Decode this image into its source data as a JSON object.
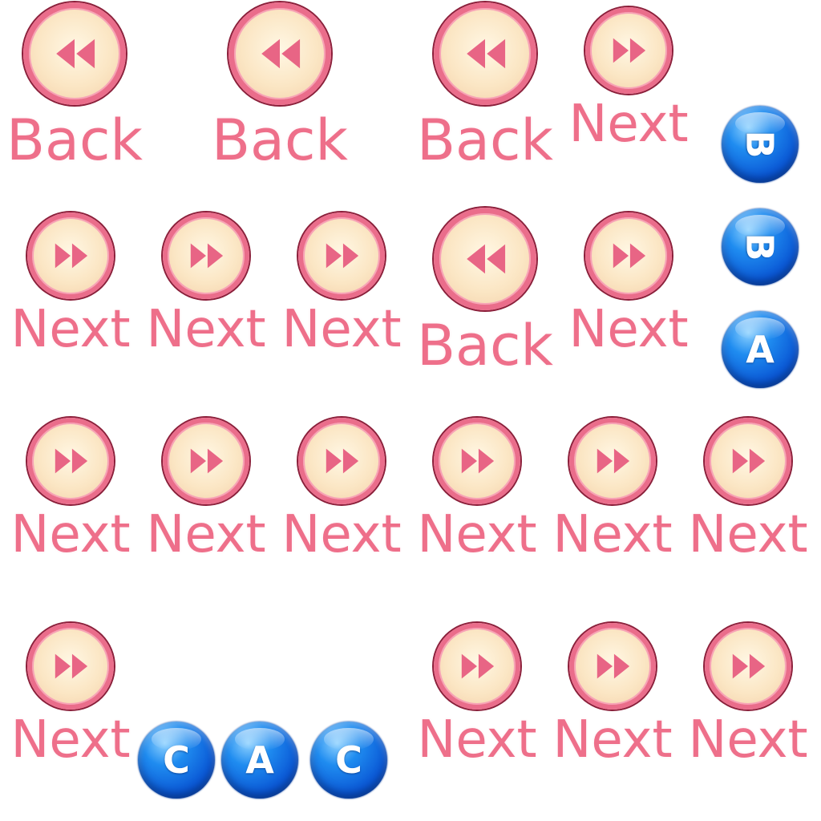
{
  "colors": {
    "label": "#ee6f8a",
    "ring": "#ea6d8b",
    "ring_outline": "#8b1f3a",
    "face": "#fbe6c4",
    "arrow": "#e86585",
    "gem": "#0b59d6"
  },
  "buttons": [
    {
      "label": "Back",
      "kind": "back",
      "icon": "rewind-icon"
    },
    {
      "label": "Back",
      "kind": "back",
      "icon": "rewind-icon"
    },
    {
      "label": "Back",
      "kind": "back",
      "icon": "rewind-icon"
    },
    {
      "label": "Next",
      "kind": "next",
      "icon": "fast-forward-icon"
    },
    {
      "label": "Next",
      "kind": "next",
      "icon": "fast-forward-icon"
    },
    {
      "label": "Next",
      "kind": "next",
      "icon": "fast-forward-icon"
    },
    {
      "label": "Next",
      "kind": "next",
      "icon": "fast-forward-icon"
    },
    {
      "label": "Back",
      "kind": "back",
      "icon": "rewind-icon"
    },
    {
      "label": "Next",
      "kind": "next",
      "icon": "fast-forward-icon"
    },
    {
      "label": "Next",
      "kind": "next",
      "icon": "fast-forward-icon"
    },
    {
      "label": "Next",
      "kind": "next",
      "icon": "fast-forward-icon"
    },
    {
      "label": "Next",
      "kind": "next",
      "icon": "fast-forward-icon"
    },
    {
      "label": "Next",
      "kind": "next",
      "icon": "fast-forward-icon"
    },
    {
      "label": "Next",
      "kind": "next",
      "icon": "fast-forward-icon"
    },
    {
      "label": "Next",
      "kind": "next",
      "icon": "fast-forward-icon"
    },
    {
      "label": "Next",
      "kind": "next",
      "icon": "fast-forward-icon"
    },
    {
      "label": "Next",
      "kind": "next",
      "icon": "fast-forward-icon"
    },
    {
      "label": "Next",
      "kind": "next",
      "icon": "fast-forward-icon"
    },
    {
      "label": "Next",
      "kind": "next",
      "icon": "fast-forward-icon"
    }
  ],
  "gems": [
    {
      "letter": "B",
      "rotated": true
    },
    {
      "letter": "B",
      "rotated": true
    },
    {
      "letter": "A",
      "rotated": false
    },
    {
      "letter": "C",
      "rotated": false
    },
    {
      "letter": "A",
      "rotated": false
    },
    {
      "letter": "C",
      "rotated": false
    }
  ]
}
